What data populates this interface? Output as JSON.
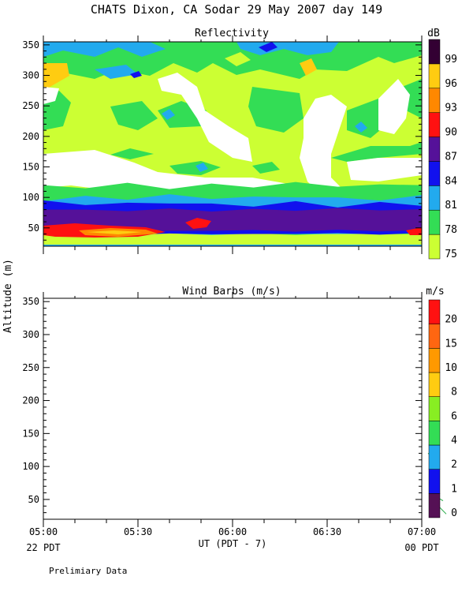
{
  "title": "CHATS Dixon, CA  Sodar  29 May 2007  day 149",
  "y_axis_label": "Altitude (m)",
  "footer_note": "Prelimiary Data",
  "colors": {
    "white": "#ffffff",
    "c75": "#ccff33",
    "c78": "#33dd55",
    "c81": "#22aaee",
    "c84": "#1111ee",
    "c87": "#551199",
    "c90": "#ff1111",
    "c93": "#ff8800",
    "c96": "#ffcc11",
    "c99": "#330033",
    "barb": "#22aa44"
  },
  "chart_data": [
    {
      "type": "heatmap",
      "title": "Reflectivity",
      "legend_title": "dB",
      "ylim": [
        20,
        355
      ],
      "y_ticks": [
        50,
        100,
        150,
        200,
        250,
        300,
        350
      ],
      "xlim_hours": [
        5.0,
        7.0
      ],
      "legend": [
        {
          "label": "75",
          "color": "#ccff33"
        },
        {
          "label": "78",
          "color": "#33dd55"
        },
        {
          "label": "81",
          "color": "#22aaee"
        },
        {
          "label": "84",
          "color": "#1111ee"
        },
        {
          "label": "87",
          "color": "#551199"
        },
        {
          "label": "90",
          "color": "#ff1111"
        },
        {
          "label": "93",
          "color": "#ff8800"
        },
        {
          "label": "96",
          "color": "#ffcc11"
        },
        {
          "label": "99",
          "color": "#330033"
        }
      ],
      "bands": [
        {
          "level": "78",
          "alt_range": [
            40,
            120
          ]
        },
        {
          "level": "81",
          "alt_range": [
            40,
            100
          ]
        },
        {
          "level": "84",
          "alt_range": [
            40,
            90
          ]
        },
        {
          "level": "87",
          "alt_range": [
            45,
            80
          ]
        },
        {
          "level": "90",
          "alt_range": [
            58,
            72
          ]
        },
        {
          "level": "93",
          "alt_range": [
            60,
            66
          ]
        }
      ]
    },
    {
      "type": "scatter",
      "title": "Wind Barbs (m/s)",
      "legend_title": "m/s",
      "ylim": [
        20,
        355
      ],
      "y_ticks": [
        50,
        100,
        150,
        200,
        250,
        300,
        350
      ],
      "xlim_hours": [
        5.0,
        7.0
      ],
      "x_ticks": [
        "05:00",
        "05:30",
        "06:00",
        "06:30",
        "07:00"
      ],
      "x_label": "UT  (PDT - 7)",
      "x_left_note": "22 PDT",
      "x_right_note": "00 PDT",
      "legend": [
        {
          "label": "0",
          "color": "#551155"
        },
        {
          "label": "1",
          "color": "#1111ee"
        },
        {
          "label": "2",
          "color": "#22aaee"
        },
        {
          "label": "4",
          "color": "#33dd55"
        },
        {
          "label": "6",
          "color": "#88ee22"
        },
        {
          "label": "8",
          "color": "#ffcc11"
        },
        {
          "label": "10",
          "color": "#ff9900"
        },
        {
          "label": "15",
          "color": "#ff6611"
        },
        {
          "label": "20",
          "color": "#ff1111"
        }
      ]
    }
  ]
}
